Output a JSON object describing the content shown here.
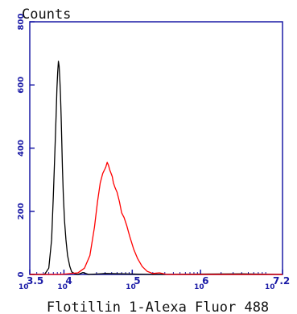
{
  "chart_data": {
    "type": "line",
    "ylabel": "Counts",
    "xlabel": "Flotillin 1-Alexa Fluor 488",
    "xscale": "log",
    "xlim": [
      3162,
      15849000
    ],
    "ylim": [
      0,
      800
    ],
    "yticks": [
      0,
      200,
      400,
      600,
      800
    ],
    "xticks": [
      {
        "value": 3162,
        "base": "10",
        "exp": "3.5"
      },
      {
        "value": 10000,
        "base": "10",
        "exp": "4"
      },
      {
        "value": 100000,
        "base": "10",
        "exp": "5"
      },
      {
        "value": 1000000,
        "base": "10",
        "exp": "6"
      },
      {
        "value": 15849000,
        "base": "10",
        "exp": "7.2"
      }
    ],
    "series": [
      {
        "color": "#000000",
        "x": [
          3162,
          5200,
          6000,
          6600,
          7000,
          7400,
          7700,
          7900,
          8100,
          8300,
          8500,
          8700,
          8900,
          9100,
          9300,
          9500,
          9800,
          10200,
          10700,
          11300,
          12200,
          13000,
          14500,
          16000,
          19000,
          23000,
          40000,
          200000,
          4000000,
          15849000
        ],
        "y": [
          0,
          0,
          20,
          110,
          250,
          400,
          510,
          590,
          640,
          675,
          660,
          620,
          570,
          500,
          420,
          340,
          250,
          170,
          110,
          60,
          25,
          8,
          2,
          0,
          6,
          0,
          3,
          0,
          2,
          0
        ]
      },
      {
        "color": "#ff0000",
        "x": [
          3162,
          9000,
          16000,
          20000,
          24000,
          28000,
          31000,
          34000,
          37000,
          39000,
          41000,
          43000,
          45000,
          47000,
          49000,
          51000,
          53000,
          56000,
          60000,
          65000,
          70000,
          76000,
          83000,
          92000,
          105000,
          120000,
          140000,
          165000,
          200000,
          250000,
          320000,
          15849000
        ],
        "y": [
          0,
          0,
          5,
          20,
          60,
          150,
          230,
          290,
          320,
          330,
          340,
          355,
          345,
          330,
          320,
          310,
          290,
          275,
          260,
          230,
          195,
          180,
          155,
          120,
          80,
          50,
          25,
          10,
          3,
          5,
          0,
          0
        ]
      }
    ],
    "grid": false,
    "legend": "none"
  }
}
